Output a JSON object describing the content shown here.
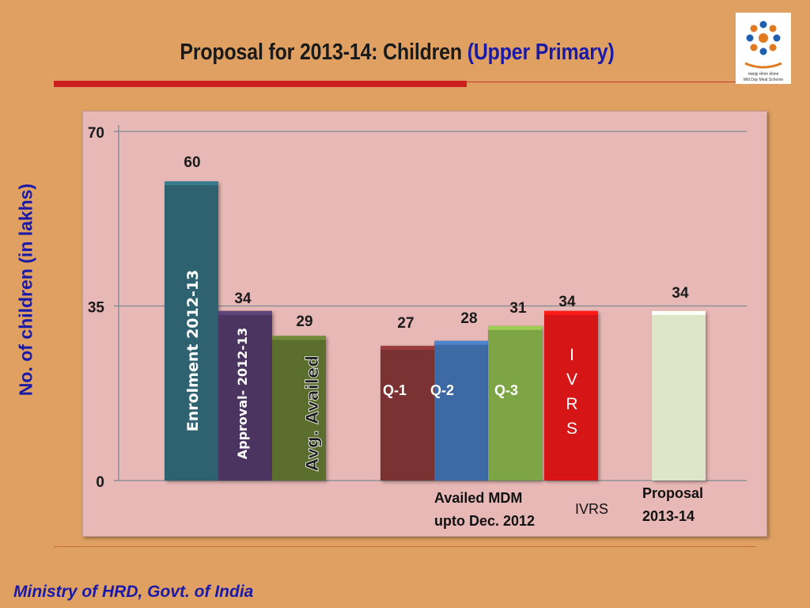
{
  "header": {
    "title_main": "Proposal for 2013-14: Children ",
    "title_accent": "(Upper Primary)",
    "accent_color": "#1a1aa8"
  },
  "logo": {
    "icon": "mid-day-meal-logo-icon",
    "text_line1": "मध्याह्न भोजन योजना",
    "text_line2": "Mid Day Meal Scheme"
  },
  "chart_data": {
    "type": "bar",
    "ylabel": "No. of children (in lakhs)",
    "ylim": [
      0,
      70
    ],
    "yticks": [
      0,
      35,
      70
    ],
    "grid": true,
    "groups": [
      {
        "name": "",
        "bars": [
          {
            "value": 60,
            "label": "Enrolment 2012-13",
            "color": "#2e6271"
          },
          {
            "value": 34,
            "label": "Approval-  2012-13",
            "color": "#4b3660"
          },
          {
            "value": 29,
            "label": "Avg. Availed",
            "color": "#5b6e2e"
          }
        ]
      },
      {
        "name": "Availed  MDM upto Dec. 2012",
        "name_line1": "Availed  MDM",
        "name_line2": "upto Dec. 2012",
        "bars": [
          {
            "value": 27,
            "label": "Q-1",
            "color": "#7a3030"
          },
          {
            "value": 28,
            "label": "Q-2",
            "color": "#3d6aa4"
          },
          {
            "value": 31,
            "label": "Q-3",
            "color": "#7ea544"
          }
        ]
      },
      {
        "name": "IVRS",
        "bars": [
          {
            "value": 34,
            "label": "IVRS",
            "label_chars": [
              "I",
              "V",
              "R",
              "S"
            ],
            "color": "#d61515"
          }
        ]
      },
      {
        "name": "Proposal 2013-14",
        "name_line1": "Proposal",
        "name_line2": "2013-14",
        "bars": [
          {
            "value": 34,
            "label": "",
            "color": "#dde6c8"
          }
        ]
      }
    ]
  },
  "footer": {
    "text": "Ministry of HRD, Govt. of India"
  }
}
